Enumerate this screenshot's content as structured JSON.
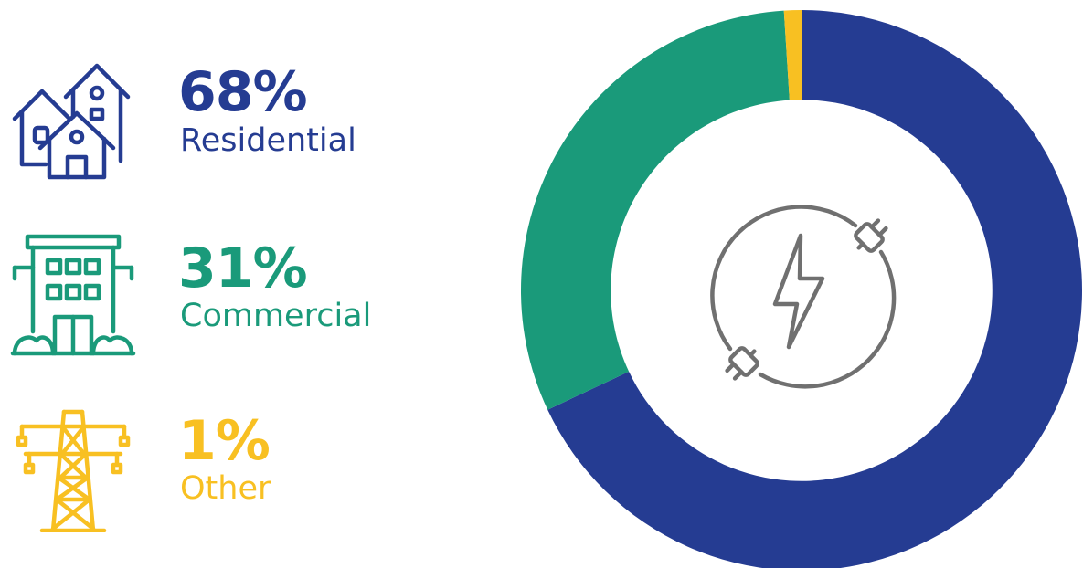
{
  "chart_data": {
    "type": "pie",
    "title": "",
    "categories": [
      "Residential",
      "Commercial",
      "Other"
    ],
    "values": [
      68,
      31,
      1
    ],
    "unit": "%",
    "value_labels": [
      "68%",
      "31%",
      "1%"
    ],
    "colors": [
      "#253c92",
      "#1a9a7a",
      "#f8c022"
    ],
    "start_angle_deg": 0,
    "direction": "clockwise",
    "inner_radius_ratio": 0.68,
    "center_icon": "electricity-plug-bolt-icon",
    "legend_placement": "left"
  },
  "legend": {
    "items": [
      {
        "percent": "68%",
        "label": "Residential",
        "icon": "houses-icon",
        "color": "#253c92"
      },
      {
        "percent": "31%",
        "label": "Commercial",
        "icon": "office-building-icon",
        "color": "#1a9a7a"
      },
      {
        "percent": "1%",
        "label": "Other",
        "icon": "power-tower-icon",
        "color": "#f8c022"
      }
    ]
  }
}
